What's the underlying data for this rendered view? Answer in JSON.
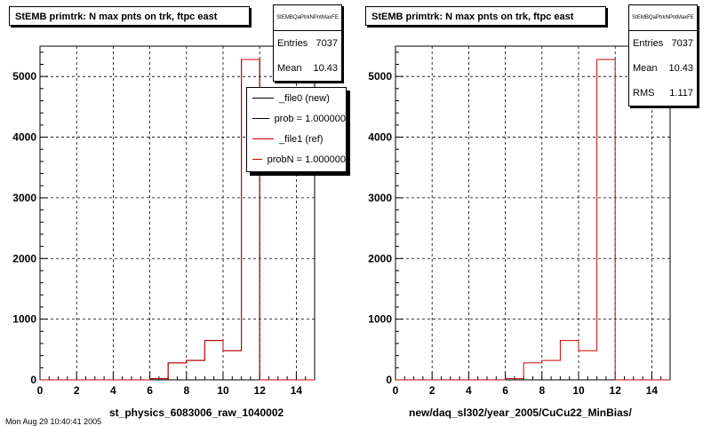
{
  "colors": {
    "new": "#000000",
    "ref": "#cc0000"
  },
  "left": {
    "title": "StEMB primtrk: N max pnts on trk, ftpc east",
    "stats": {
      "name": "StEMBQaPtrkNPntMaxFE",
      "rows": [
        {
          "label": "Entries",
          "value": "7037"
        },
        {
          "label": "Mean",
          "value": "10.43"
        }
      ]
    },
    "legend": [
      {
        "label": "_file0 (new)",
        "color": "#000000"
      },
      {
        "label": "prob = 1.000000",
        "color": "#000000"
      },
      {
        "label": "_file1 (ref)",
        "color": "#cc0000"
      },
      {
        "label": "probN = 1.000000",
        "color": "#cc0000"
      }
    ],
    "xtitle": "st_physics_6083006_raw_1040002"
  },
  "right": {
    "title": "StEMB primtrk: N max pnts on trk, ftpc east",
    "stats": {
      "name": "StEMBQaPtrkNPntMaxFE",
      "rows": [
        {
          "label": "Entries",
          "value": "7037"
        },
        {
          "label": "Mean",
          "value": "10.43"
        },
        {
          "label": "RMS",
          "value": "1.117"
        }
      ]
    },
    "xtitle": "new/daq_sl302/year_2005/CuCu22_MinBias/"
  },
  "footer": "Mon Aug 29 10:40:41 2005",
  "chart_data": [
    {
      "type": "histogram",
      "title": "StEMB primtrk: N max pnts on trk, ftpc east",
      "xlabel": "st_physics_6083006_raw_1040002",
      "xlim": [
        0,
        15
      ],
      "ylim": [
        0,
        5500
      ],
      "xticks": [
        0,
        2,
        4,
        6,
        8,
        10,
        12,
        14
      ],
      "yticks": [
        0,
        1000,
        2000,
        3000,
        4000,
        5000
      ],
      "grid": true,
      "bin_edges": [
        0,
        1,
        2,
        3,
        4,
        5,
        6,
        7,
        8,
        9,
        10,
        11,
        12,
        13,
        14,
        15
      ],
      "series": [
        {
          "name": "_file0 (new)",
          "color": "#000000",
          "values": [
            0,
            0,
            0,
            0,
            0,
            0,
            20,
            280,
            320,
            650,
            480,
            5280,
            0,
            0,
            0
          ]
        },
        {
          "name": "_file1 (ref)",
          "color": "#cc0000",
          "values": [
            0,
            0,
            0,
            0,
            0,
            0,
            20,
            280,
            320,
            650,
            480,
            5280,
            0,
            0,
            0
          ]
        }
      ]
    },
    {
      "type": "histogram",
      "title": "StEMB primtrk: N max pnts on trk, ftpc east",
      "xlabel": "new/daq_sl302/year_2005/CuCu22_MinBias/",
      "xlim": [
        0,
        15
      ],
      "ylim": [
        0,
        5500
      ],
      "xticks": [
        0,
        2,
        4,
        6,
        8,
        10,
        12,
        14
      ],
      "yticks": [
        0,
        1000,
        2000,
        3000,
        4000,
        5000
      ],
      "grid": true,
      "bin_edges": [
        0,
        1,
        2,
        3,
        4,
        5,
        6,
        7,
        8,
        9,
        10,
        11,
        12,
        13,
        14,
        15
      ],
      "series": [
        {
          "color": "#cc0000",
          "values": [
            0,
            0,
            0,
            0,
            0,
            0,
            20,
            280,
            320,
            650,
            480,
            5280,
            0,
            0,
            0
          ]
        }
      ]
    }
  ]
}
